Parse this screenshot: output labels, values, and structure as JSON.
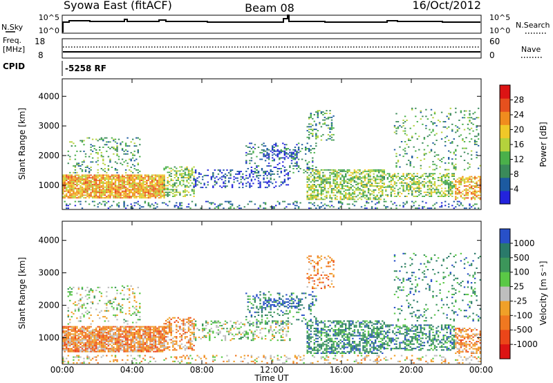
{
  "header": {
    "station": "Syowa East (fitACF)",
    "beam": "Beam 08",
    "date": "16/Oct/2012"
  },
  "strip_nsky": {
    "left_label": "N.Sky",
    "right_label": "N.Search",
    "ticks_left": [
      "10^5",
      "10^0"
    ],
    "ticks_right": [
      "10^5",
      "10^0"
    ]
  },
  "strip_freq": {
    "left_label_1": "Freq.",
    "left_label_2": "[MHz]",
    "right_label": "Nave",
    "ticks_left": [
      "18",
      "8"
    ],
    "ticks_right": [
      "60",
      "0"
    ]
  },
  "strip_cpid": {
    "label": "CPID",
    "value": "-5258 RF"
  },
  "chart_data": [
    {
      "type": "heatmap",
      "panel": "power",
      "ylabel": "Slant Range [km]",
      "ylim": [
        180,
        4590
      ],
      "yticks": [
        "1000",
        "2000",
        "3000",
        "4000"
      ],
      "ytick_values": [
        1000,
        2000,
        3000,
        4000
      ],
      "colorbar_label": "Power [dB]",
      "colorbar_ticks": [
        "4",
        "8",
        "12",
        "16",
        "20",
        "24",
        "28"
      ],
      "colorbar_values": [
        4,
        8,
        12,
        16,
        20,
        24,
        28
      ],
      "colorbar_range": [
        0,
        32
      ],
      "colors": [
        "#2323dc",
        "#1c5aa0",
        "#3a8a5a",
        "#4ab04a",
        "#b4d23c",
        "#f0c828",
        "#f08c1e",
        "#e6501e",
        "#dc1414"
      ]
    },
    {
      "type": "heatmap",
      "panel": "velocity",
      "ylabel": "Slant Range [km]",
      "ylim": [
        180,
        4590
      ],
      "yticks": [
        "1000",
        "2000",
        "3000",
        "4000"
      ],
      "ytick_values": [
        1000,
        2000,
        3000,
        4000
      ],
      "colorbar_label": "Velocity [m s⁻¹]",
      "colorbar_ticks": [
        "1000",
        "500",
        "100",
        "25",
        "-25",
        "-100",
        "-500",
        "-1000"
      ],
      "colors_top_to_bottom": [
        "#2850c8",
        "#2a7a6a",
        "#3c965a",
        "#5ac846",
        "#bebebe",
        "#f0a028",
        "#f07820",
        "#eb4619",
        "#dc1414"
      ]
    }
  ],
  "xaxis": {
    "label": "Time UT",
    "ticks": [
      "00:00",
      "04:00",
      "08:00",
      "12:00",
      "16:00",
      "20:00",
      "00:00"
    ],
    "hours": [
      0,
      4,
      8,
      12,
      16,
      20,
      24
    ]
  }
}
